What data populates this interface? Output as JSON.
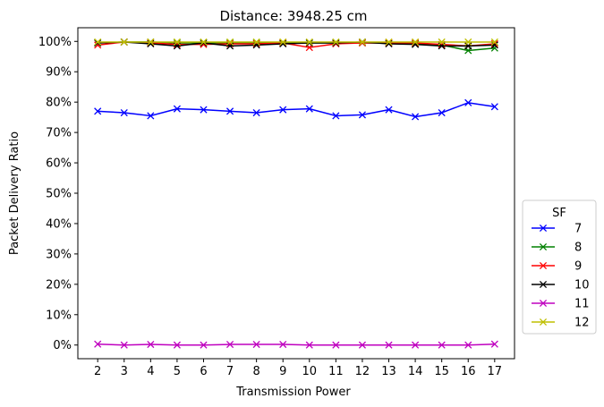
{
  "chart_data": {
    "type": "line",
    "title": "Distance: 3948.25 cm",
    "xlabel": "Transmission Power",
    "ylabel": "Packet Delivery Ratio",
    "x": [
      2,
      3,
      4,
      5,
      6,
      7,
      8,
      9,
      10,
      11,
      12,
      13,
      14,
      15,
      16,
      17
    ],
    "ylim": [
      -0.045,
      1.045
    ],
    "y_ticks": [
      0,
      0.1,
      0.2,
      0.3,
      0.4,
      0.5,
      0.6,
      0.7,
      0.8,
      0.9,
      1.0
    ],
    "y_tick_labels": [
      "0%",
      "10%",
      "20%",
      "30%",
      "40%",
      "50%",
      "60%",
      "70%",
      "80%",
      "90%",
      "100%"
    ],
    "grid": false,
    "marker": "x",
    "legend": {
      "title": "SF",
      "placement": "outside-right"
    },
    "series": [
      {
        "name": "7",
        "color": "#0000ff",
        "values": [
          0.77,
          0.765,
          0.755,
          0.778,
          0.775,
          0.77,
          0.765,
          0.775,
          0.778,
          0.755,
          0.758,
          0.775,
          0.752,
          0.765,
          0.798,
          0.785
        ]
      },
      {
        "name": "8",
        "color": "#008000",
        "values": [
          0.995,
          0.998,
          0.998,
          0.995,
          0.995,
          0.995,
          0.995,
          0.995,
          0.995,
          0.995,
          0.995,
          0.995,
          0.992,
          0.988,
          0.97,
          0.978
        ]
      },
      {
        "name": "9",
        "color": "#ff0000",
        "values": [
          0.988,
          0.998,
          0.995,
          0.99,
          0.99,
          0.992,
          0.992,
          0.995,
          0.98,
          0.992,
          0.995,
          0.995,
          0.995,
          0.99,
          0.985,
          0.992
        ]
      },
      {
        "name": "10",
        "color": "#000000",
        "values": [
          0.995,
          0.998,
          0.992,
          0.985,
          0.995,
          0.985,
          0.988,
          0.992,
          0.995,
          0.995,
          0.998,
          0.992,
          0.99,
          0.985,
          0.985,
          0.988
        ]
      },
      {
        "name": "11",
        "color": "#bf00bf",
        "values": [
          0.003,
          0.0,
          0.002,
          0.0,
          0.0,
          0.002,
          0.002,
          0.002,
          0.0,
          0.0,
          0.0,
          0.0,
          0.0,
          0.0,
          0.0,
          0.003
        ]
      },
      {
        "name": "12",
        "color": "#bfbf00",
        "values": [
          0.998,
          0.998,
          0.998,
          0.998,
          0.998,
          0.998,
          0.998,
          0.998,
          0.998,
          0.998,
          0.998,
          0.998,
          0.998,
          0.998,
          0.998,
          0.998
        ]
      }
    ]
  }
}
